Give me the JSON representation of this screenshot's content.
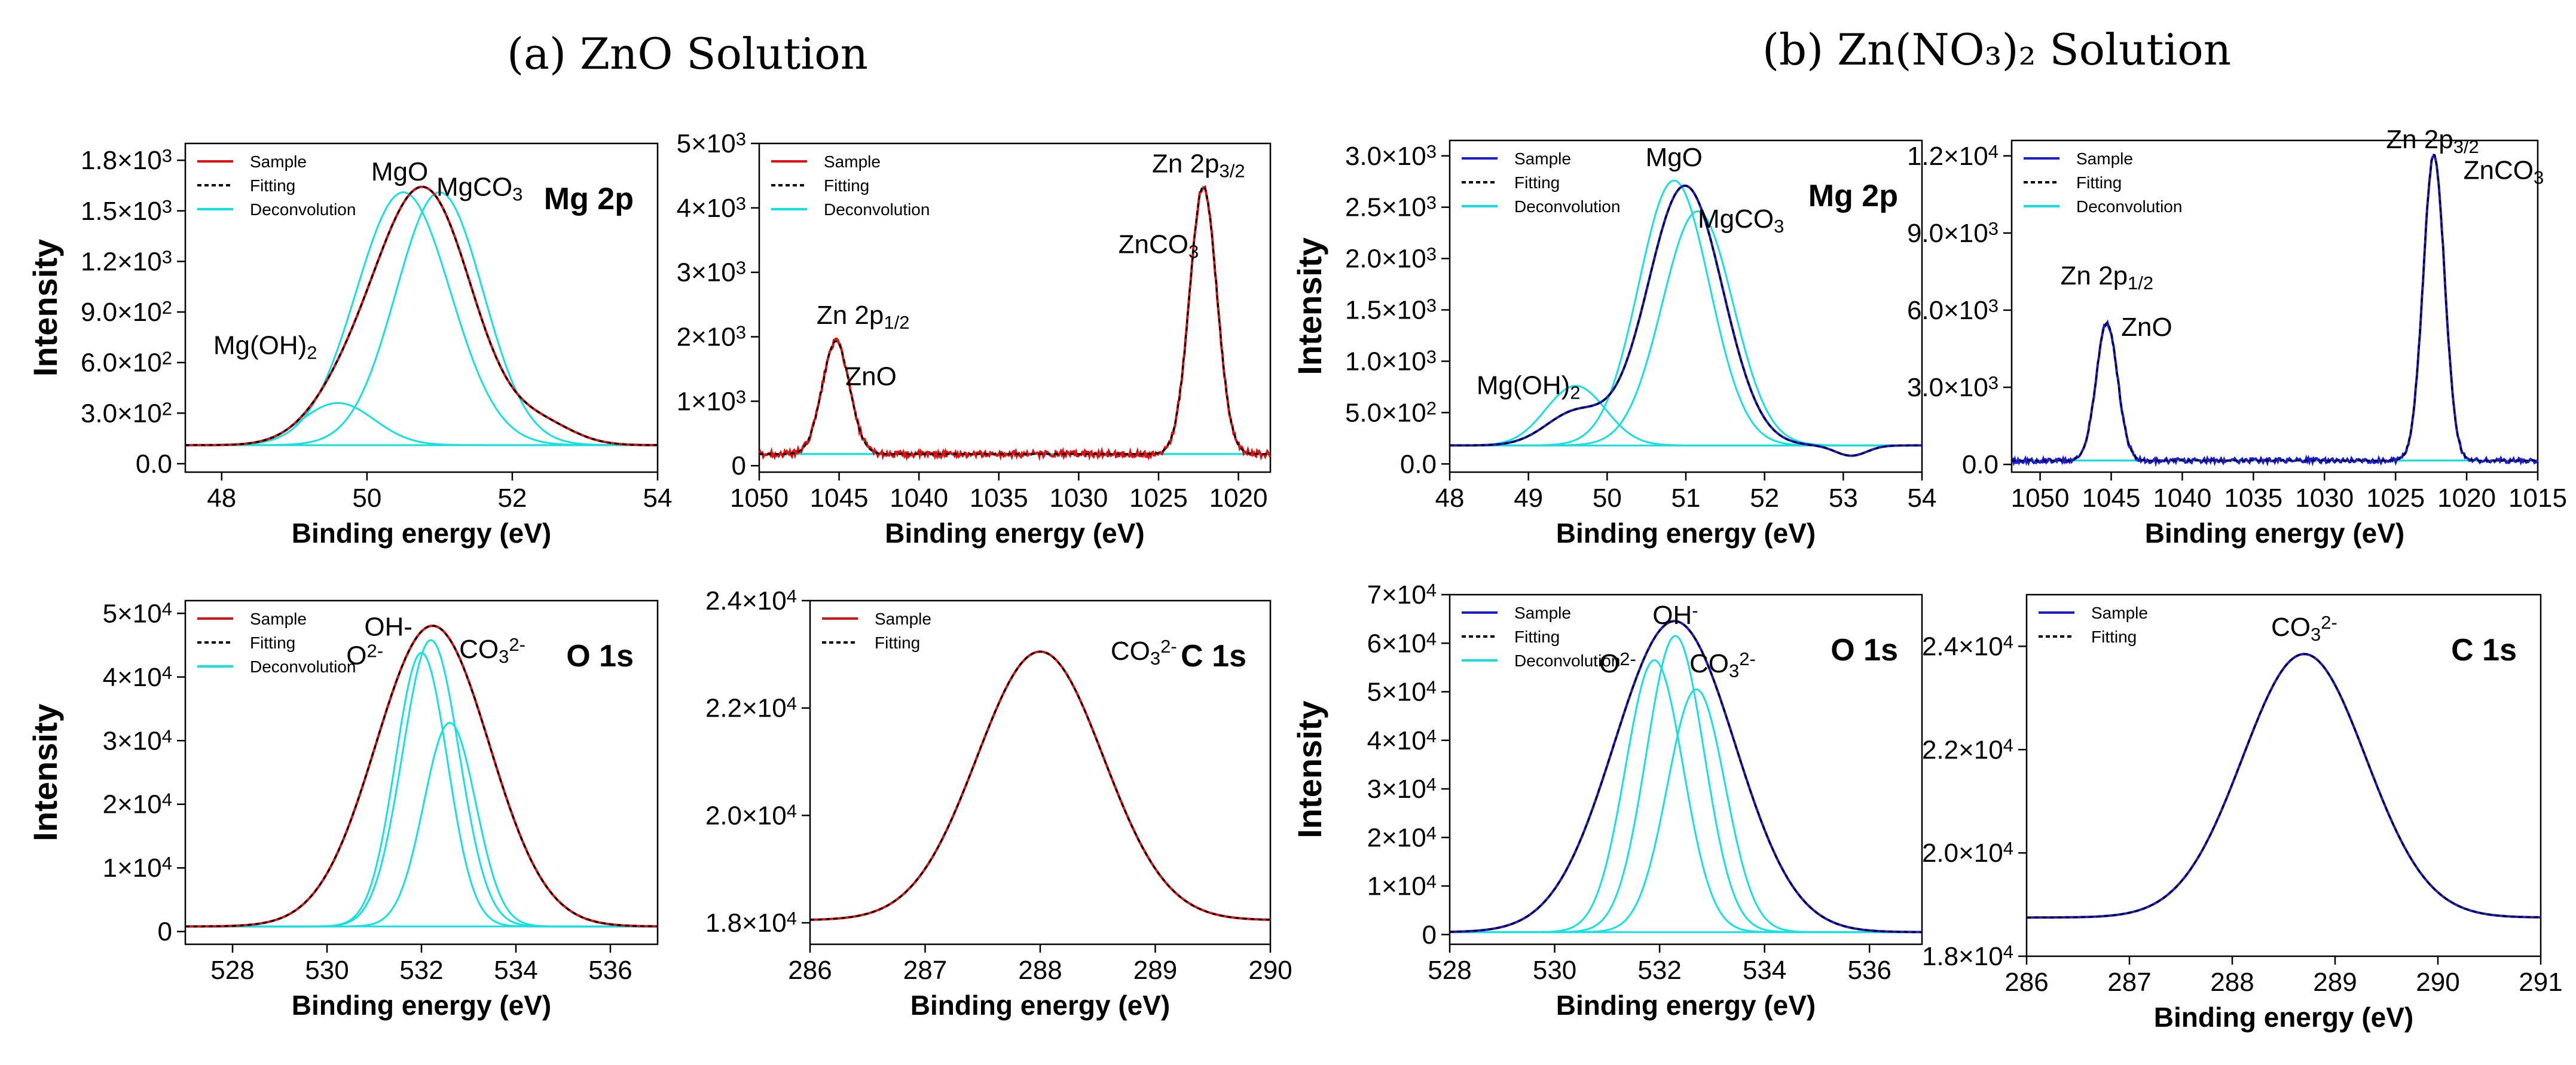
{
  "panel_titles": {
    "a": "(a) ZnO Solution",
    "b": "(b) Zn(NO₃)₂ Solution"
  },
  "colors": {
    "sample_a": "#e01010",
    "sample_b": "#1a1ae0",
    "fitting": "#000000",
    "deconvolution": "#14e0e0"
  },
  "chart_data": [
    {
      "id": "a-mg2p",
      "panel": "a",
      "type": "line",
      "tag": "Mg 2p",
      "xlabel": "Binding energy (eV)",
      "ylabel": "Intensity",
      "xlim": [
        47.5,
        54
      ],
      "ylim": [
        -50,
        1900
      ],
      "xticks": [
        48,
        50,
        52,
        54
      ],
      "xtick_labels": [
        "48",
        "50",
        "52",
        "54"
      ],
      "yticks": [
        0,
        300,
        600,
        900,
        1200,
        1500,
        1800
      ],
      "ytick_labels": [
        "0.0",
        "3.0×10²",
        "6.0×10²",
        "9.0×10²",
        "1.2×10³",
        "1.5×10³",
        "1.8×10³"
      ],
      "baseline": 110,
      "sample_color": "sample_a",
      "legend": [
        "Sample",
        "Fitting",
        "Deconvolution"
      ],
      "components": [
        {
          "center": 49.6,
          "sigma": 0.5,
          "amp": 250
        },
        {
          "center": 50.5,
          "sigma": 0.65,
          "amp": 1500
        },
        {
          "center": 51.0,
          "sigma": 0.6,
          "amp": 1500
        }
      ],
      "sum_scale": 0.55,
      "tail": {
        "center": 52.4,
        "sigma": 0.45,
        "amp": 120
      },
      "annotations": [
        "MgO",
        "MgCO₃",
        "Mg(OH)₂"
      ]
    },
    {
      "id": "a-zn2p",
      "panel": "a",
      "type": "line",
      "tag": "",
      "xlabel": "Binding energy (eV)",
      "ylabel": "",
      "xlim": [
        1050,
        1018
      ],
      "ylim": [
        -100,
        5000
      ],
      "xticks": [
        1050,
        1045,
        1040,
        1035,
        1030,
        1025,
        1020
      ],
      "xtick_labels": [
        "1050",
        "1045",
        "1040",
        "1035",
        "1030",
        "1025",
        "1020"
      ],
      "yticks": [
        0,
        1000,
        2000,
        3000,
        4000,
        5000
      ],
      "ytick_labels": [
        "0",
        "1×10³",
        "2×10³",
        "3×10³",
        "4×10³",
        "5×10³"
      ],
      "baseline": 180,
      "sample_color": "sample_a",
      "legend": [
        "Sample",
        "Fitting",
        "Deconvolution"
      ],
      "components": [
        {
          "center": 1045.2,
          "sigma": 0.85,
          "amp": 1750
        },
        {
          "center": 1022.2,
          "sigma": 0.85,
          "amp": 4150
        }
      ],
      "noise": 45,
      "annotations": [
        "Zn 2p₁/₂",
        "ZnO",
        "Zn 2p₃/₂",
        "ZnCO₃"
      ]
    },
    {
      "id": "a-o1s",
      "panel": "a",
      "type": "line",
      "tag": "O 1s",
      "xlabel": "Binding energy (eV)",
      "ylabel": "Intensity",
      "xlim": [
        527,
        537
      ],
      "ylim": [
        -2000,
        52000
      ],
      "xticks": [
        528,
        530,
        532,
        534,
        536
      ],
      "xtick_labels": [
        "528",
        "530",
        "532",
        "534",
        "536"
      ],
      "yticks": [
        0,
        10000,
        20000,
        30000,
        40000,
        50000
      ],
      "ytick_labels": [
        "0",
        "1×10⁴",
        "2×10⁴",
        "3×10⁴",
        "4×10⁴",
        "5×10⁴"
      ],
      "baseline": 800,
      "sample_color": "sample_a",
      "legend": [
        "Sample",
        "Fitting",
        "Deconvolution"
      ],
      "components": [
        {
          "center": 532.0,
          "sigma": 0.55,
          "amp": 43000
        },
        {
          "center": 532.2,
          "sigma": 0.6,
          "amp": 45000
        },
        {
          "center": 532.6,
          "sigma": 0.55,
          "amp": 32000
        }
      ],
      "sum_scale": 0.45,
      "sum_sigma": 1.2,
      "annotations": [
        "OH-",
        "O²⁻",
        "CO₃²⁻"
      ]
    },
    {
      "id": "a-c1s",
      "panel": "a",
      "type": "line",
      "tag": "C 1s",
      "xlabel": "Binding energy (eV)",
      "ylabel": "",
      "xlim": [
        286,
        290
      ],
      "ylim": [
        17600,
        24000
      ],
      "xticks": [
        286,
        287,
        288,
        289,
        290
      ],
      "xtick_labels": [
        "286",
        "287",
        "288",
        "289",
        "290"
      ],
      "yticks": [
        18000,
        20000,
        22000,
        24000
      ],
      "ytick_labels": [
        "1.8×10⁴",
        "2.0×10⁴",
        "2.2×10⁴",
        "2.4×10⁴"
      ],
      "baseline": 18050,
      "sample_color": "sample_a",
      "legend": [
        "Sample",
        "Fitting"
      ],
      "components": [
        {
          "center": 288.0,
          "sigma": 0.55,
          "amp": 5000
        }
      ],
      "annotations": [
        "CO₃²⁻"
      ]
    },
    {
      "id": "b-mg2p",
      "panel": "b",
      "type": "line",
      "tag": "Mg 2p",
      "xlabel": "Binding energy (eV)",
      "ylabel": "Intensity",
      "xlim": [
        48,
        54
      ],
      "ylim": [
        -80,
        3150
      ],
      "xticks": [
        48,
        49,
        50,
        51,
        52,
        53,
        54
      ],
      "xtick_labels": [
        "48",
        "49",
        "50",
        "51",
        "52",
        "53",
        "54"
      ],
      "yticks": [
        0,
        500,
        1000,
        1500,
        2000,
        2500,
        3000
      ],
      "ytick_labels": [
        "0.0",
        "5.0×10²",
        "1.0×10³",
        "1.5×10³",
        "2.0×10³",
        "2.5×10³",
        "3.0×10³"
      ],
      "baseline": 180,
      "sample_color": "sample_b",
      "legend": [
        "Sample",
        "Fitting",
        "Deconvolution"
      ],
      "components": [
        {
          "center": 49.6,
          "sigma": 0.38,
          "amp": 580
        },
        {
          "center": 50.85,
          "sigma": 0.45,
          "amp": 2580
        },
        {
          "center": 51.15,
          "sigma": 0.45,
          "amp": 2280
        }
      ],
      "sum_scale": 0.5,
      "dip": {
        "center": 53.1,
        "sigma": 0.2,
        "amp": -100
      },
      "annotations": [
        "MgO",
        "MgCO₃",
        "Mg(OH)₂"
      ]
    },
    {
      "id": "b-zn2p",
      "panel": "b",
      "type": "line",
      "tag": "",
      "xlabel": "Binding energy (eV)",
      "ylabel": "",
      "xlim": [
        1052,
        1015
      ],
      "ylim": [
        -300,
        12600
      ],
      "xticks": [
        1050,
        1045,
        1040,
        1035,
        1030,
        1025,
        1020,
        1015
      ],
      "xtick_labels": [
        "1050",
        "1045",
        "1040",
        "1035",
        "1030",
        "1025",
        "1020",
        "1015"
      ],
      "yticks": [
        0,
        3000,
        6000,
        9000,
        12000
      ],
      "ytick_labels": [
        "0.0",
        "3.0×10³",
        "6.0×10³",
        "9.0×10³",
        "1.2×10⁴"
      ],
      "baseline": 150,
      "sample_color": "sample_b",
      "legend": [
        "Sample",
        "Fitting",
        "Deconvolution"
      ],
      "components": [
        {
          "center": 1045.3,
          "sigma": 0.75,
          "amp": 5350
        },
        {
          "center": 1022.3,
          "sigma": 0.75,
          "amp": 11900
        }
      ],
      "noise": 90,
      "annotations": [
        "Zn 2p₁/₂",
        "ZnO",
        "Zn 2p₃/₂",
        "ZnCO₃"
      ]
    },
    {
      "id": "b-o1s",
      "panel": "b",
      "type": "line",
      "tag": "O 1s",
      "xlabel": "Binding energy (eV)",
      "ylabel": "Intensity",
      "xlim": [
        528,
        537
      ],
      "ylim": [
        -2000,
        70000
      ],
      "xticks": [
        528,
        530,
        532,
        534,
        536
      ],
      "xtick_labels": [
        "528",
        "530",
        "532",
        "534",
        "536"
      ],
      "yticks": [
        0,
        10000,
        20000,
        30000,
        40000,
        50000,
        60000,
        70000
      ],
      "ytick_labels": [
        "0",
        "1×10⁴",
        "2×10⁴",
        "3×10⁴",
        "4×10⁴",
        "5×10⁴",
        "6×10⁴",
        "7×10⁴"
      ],
      "baseline": 500,
      "sample_color": "sample_b",
      "legend": [
        "Sample",
        "Fitting",
        "Deconvolution"
      ],
      "components": [
        {
          "center": 531.9,
          "sigma": 0.55,
          "amp": 56000
        },
        {
          "center": 532.3,
          "sigma": 0.55,
          "amp": 61000
        },
        {
          "center": 532.7,
          "sigma": 0.55,
          "amp": 50000
        }
      ],
      "sum_scale": 0.45,
      "sum_sigma": 1.15,
      "annotations": [
        "OH⁻",
        "O²⁻",
        "CO₃²⁻"
      ]
    },
    {
      "id": "b-c1s",
      "panel": "b",
      "type": "line",
      "tag": "C 1s",
      "xlabel": "Binding energy (eV)",
      "ylabel": "",
      "xlim": [
        286,
        291
      ],
      "ylim": [
        18000,
        25000
      ],
      "xticks": [
        286,
        287,
        288,
        289,
        290,
        291
      ],
      "xtick_labels": [
        "286",
        "287",
        "288",
        "289",
        "290",
        "291"
      ],
      "yticks": [
        18000,
        20000,
        22000,
        24000
      ],
      "ytick_labels": [
        "1.8×10⁴",
        "2.0×10⁴",
        "2.2×10⁴",
        "2.4×10⁴"
      ],
      "baseline": 18750,
      "sample_color": "sample_b",
      "legend": [
        "Sample",
        "Fitting"
      ],
      "components": [
        {
          "center": 288.7,
          "sigma": 0.6,
          "amp": 5100
        }
      ],
      "annotations": [
        "CO₃²⁻"
      ]
    }
  ]
}
